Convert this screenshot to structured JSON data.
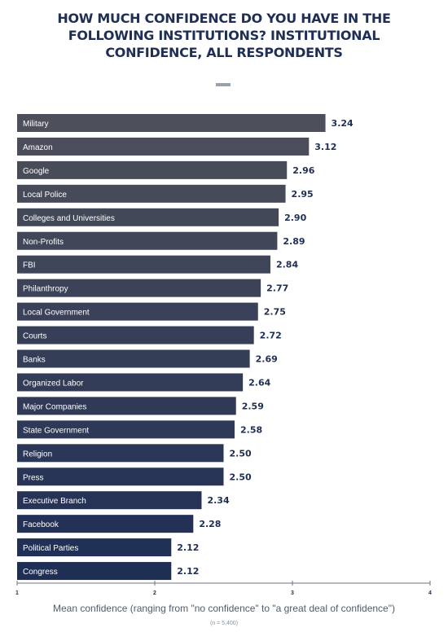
{
  "chart_data": {
    "type": "bar",
    "orientation": "horizontal",
    "title": "HOW MUCH CONFIDENCE DO YOU HAVE IN THE\nFOLLOWING INSTITUTIONS? INSTITUTIONAL\nCONFIDENCE, ALL RESPONDENTS",
    "xlabel": "Mean confidence (ranging from \"no confidence\" to \"a great deal of confidence\")",
    "note": "(n = 5,400)",
    "xlim": [
      1,
      4
    ],
    "xticks": [
      "1",
      "2",
      "3",
      "4"
    ],
    "grid": false,
    "legend": "none",
    "bar_colors": [
      "#4d4f5a",
      "#1f2e55"
    ],
    "categories": [
      "Military",
      "Amazon",
      "Google",
      "Local Police",
      "Colleges and Universities",
      "Non-Profits",
      "FBI",
      "Philanthropy",
      "Local Government",
      "Courts",
      "Banks",
      "Organized Labor",
      "Major Companies",
      "State Government",
      "Religion",
      "Press",
      "Executive Branch",
      "Facebook",
      "Political Parties",
      "Congress"
    ],
    "values": [
      3.24,
      3.12,
      2.96,
      2.95,
      2.9,
      2.89,
      2.84,
      2.77,
      2.75,
      2.72,
      2.69,
      2.64,
      2.59,
      2.58,
      2.5,
      2.5,
      2.34,
      2.28,
      2.12,
      2.12
    ],
    "value_labels": [
      "3.24",
      "3.12",
      "2.96",
      "2.95",
      "2.90",
      "2.89",
      "2.84",
      "2.77",
      "2.75",
      "2.72",
      "2.69",
      "2.64",
      "2.59",
      "2.58",
      "2.50",
      "2.50",
      "2.34",
      "2.28",
      "2.12",
      "2.12"
    ]
  }
}
